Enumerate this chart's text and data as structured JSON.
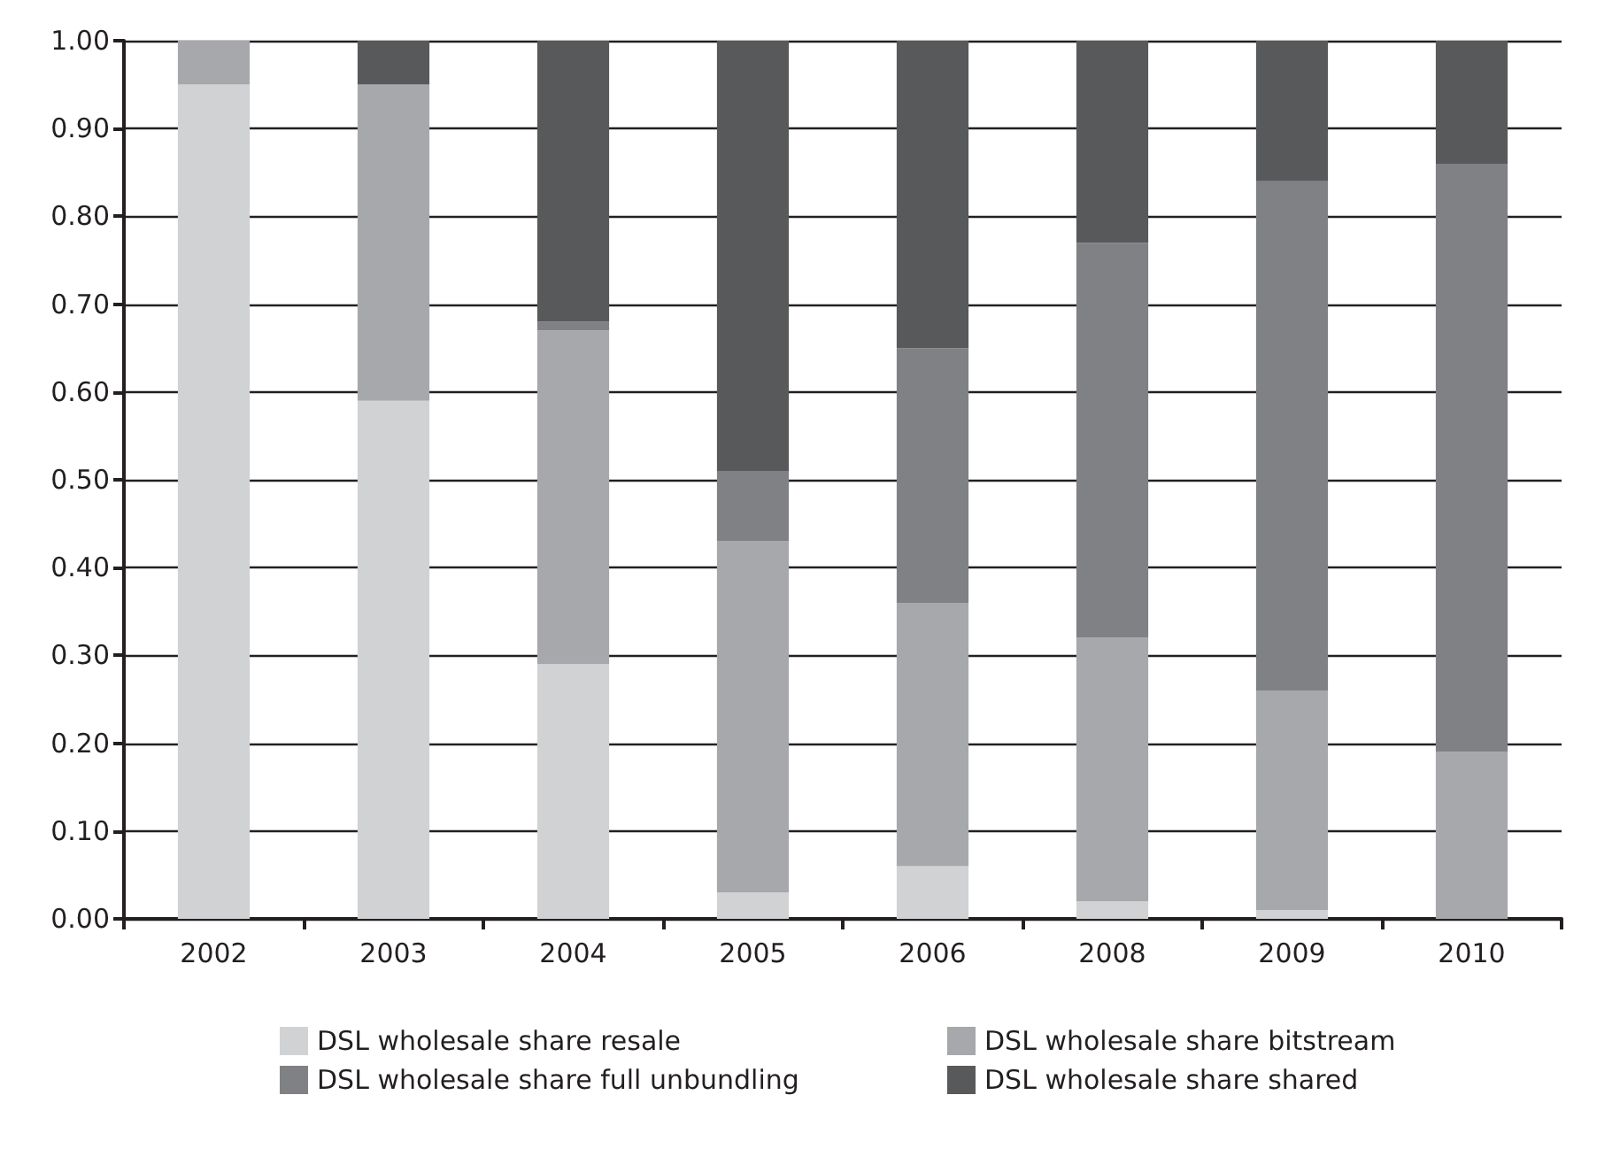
{
  "chart_data": {
    "type": "bar",
    "stacked": true,
    "categories": [
      "2002",
      "2003",
      "2004",
      "2005",
      "2006",
      "2008",
      "2009",
      "2010"
    ],
    "series": [
      {
        "name": "DSL wholesale share resale",
        "color": "#d1d2d4",
        "values": [
          0.95,
          0.59,
          0.29,
          0.03,
          0.06,
          0.02,
          0.01,
          0
        ]
      },
      {
        "name": "DSL wholesale share bitstream",
        "color": "#a7a8ab",
        "values": [
          0.05,
          0.36,
          0.38,
          0.4,
          0.3,
          0.3,
          0.25,
          0.19
        ]
      },
      {
        "name": "DSL wholesale share full unbundling",
        "color": "#808184",
        "values": [
          0,
          0,
          0.01,
          0.08,
          0.29,
          0.45,
          0.58,
          0.67
        ]
      },
      {
        "name": "DSL wholesale share shared",
        "color": "#58595b",
        "values": [
          0,
          0.05,
          0.32,
          0.49,
          0.35,
          0.23,
          0.16,
          0.14
        ]
      }
    ],
    "ylim": [
      0,
      1
    ],
    "yticks": [
      {
        "value": 0,
        "label": "0.00"
      },
      {
        "value": 0.1,
        "label": "0.10"
      },
      {
        "value": 0.2,
        "label": "0.20"
      },
      {
        "value": 0.3,
        "label": "0.30"
      },
      {
        "value": 0.4,
        "label": "0.40"
      },
      {
        "value": 0.5,
        "label": "0.50"
      },
      {
        "value": 0.6,
        "label": "0.60"
      },
      {
        "value": 0.7,
        "label": "0.70"
      },
      {
        "value": 0.8,
        "label": "0.80"
      },
      {
        "value": 0.9,
        "label": "0.90"
      },
      {
        "value": 1,
        "label": "1.00"
      }
    ],
    "grid": "y",
    "legend": "bottom"
  }
}
